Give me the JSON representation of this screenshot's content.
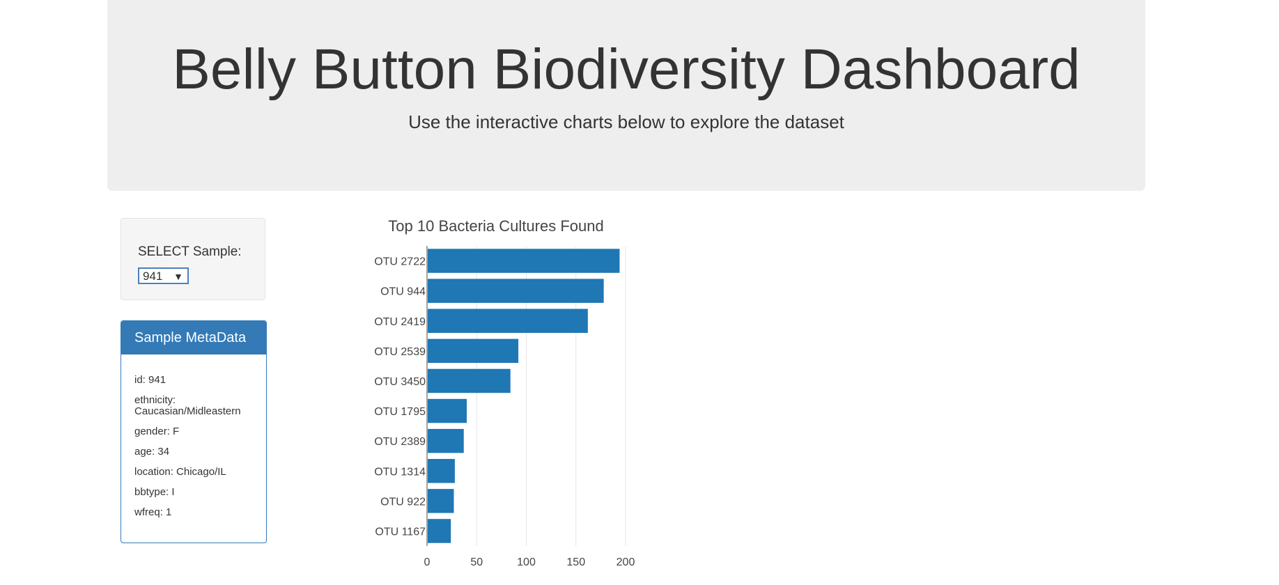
{
  "header": {
    "title": "Belly Button Biodiversity Dashboard",
    "subtitle": "Use the interactive charts below to explore the dataset"
  },
  "selector": {
    "label": "SELECT Sample:",
    "selected": "941",
    "arrow_icon": "▼"
  },
  "metadata_panel": {
    "title": "Sample MetaData",
    "items": [
      "id: 941",
      "ethnicity: Caucasian/Midleastern",
      "gender: F",
      "age: 34",
      "location: Chicago/IL",
      "bbtype: I",
      "wfreq: 1"
    ]
  },
  "colors": {
    "bar": "#1f77b4",
    "panel_accent": "#337ab7",
    "jumbotron_bg": "#eeeeee"
  },
  "chart_data": {
    "type": "bar",
    "orientation": "horizontal",
    "title": "Top 10 Bacteria Cultures Found",
    "categories": [
      "OTU 2722",
      "OTU 944",
      "OTU 2419",
      "OTU 2539",
      "OTU 3450",
      "OTU 1795",
      "OTU 2389",
      "OTU 1314",
      "OTU 922",
      "OTU 1167"
    ],
    "values": [
      194,
      178,
      162,
      92,
      84,
      40,
      37,
      28,
      27,
      24
    ],
    "xlim": [
      0,
      210
    ],
    "xticks": [
      0,
      50,
      100,
      150,
      200
    ],
    "xlabel": "",
    "ylabel": "",
    "grid": true,
    "legend": false
  }
}
